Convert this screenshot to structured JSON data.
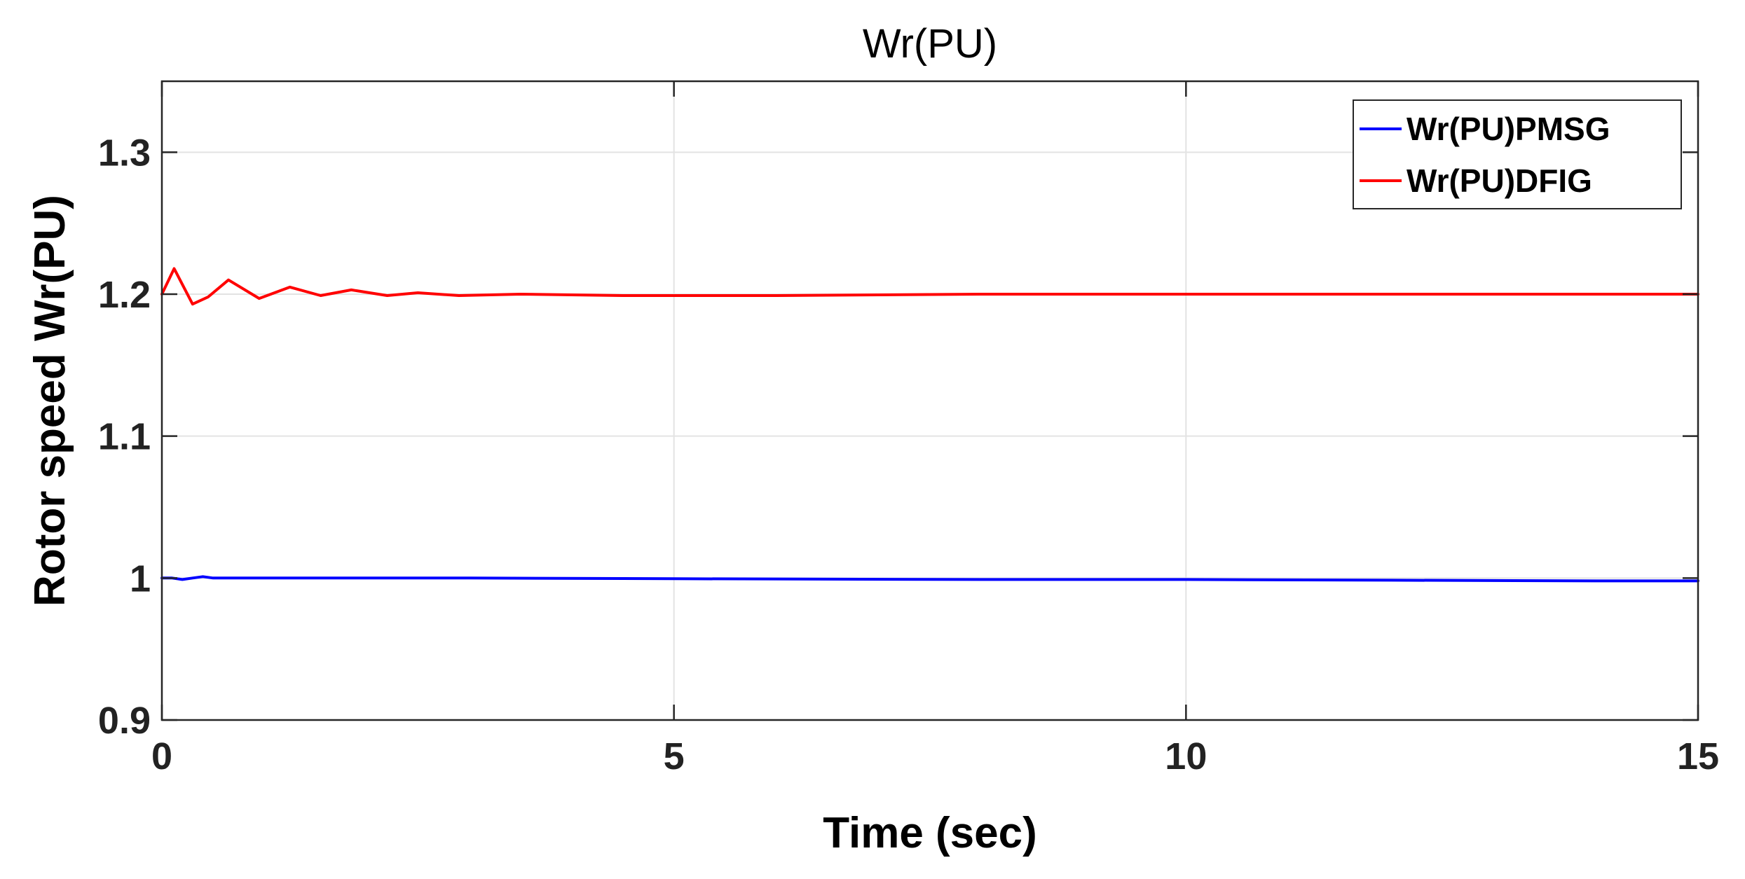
{
  "chart_data": {
    "type": "line",
    "title": "Wr(PU)",
    "xlabel": "Time (sec)",
    "ylabel": "Rotor speed Wr(PU)",
    "xlim": [
      0,
      15
    ],
    "ylim": [
      0.9,
      1.35
    ],
    "xticks": [
      "0",
      "5",
      "10",
      "15"
    ],
    "yticks": [
      "0.9",
      "1",
      "1.1",
      "1.2",
      "1.3"
    ],
    "grid": true,
    "legend_position": "top-right",
    "series": [
      {
        "name": "Wr(PU)PMSG",
        "color": "#0000ff",
        "x": [
          0,
          0.1,
          0.2,
          0.3,
          0.4,
          0.5,
          0.7,
          1.0,
          1.5,
          3,
          5,
          8,
          10,
          12,
          14,
          15
        ],
        "y": [
          1.0,
          1.0,
          0.999,
          1.0,
          1.001,
          1.0,
          1.0,
          1.0,
          1.0,
          1.0,
          0.9995,
          0.999,
          0.999,
          0.9985,
          0.998,
          0.998
        ]
      },
      {
        "name": "Wr(PU)DFIG",
        "color": "#ff0000",
        "x": [
          0,
          0.12,
          0.3,
          0.45,
          0.65,
          0.95,
          1.25,
          1.55,
          1.85,
          2.2,
          2.5,
          2.9,
          3.5,
          4.5,
          6,
          8,
          10,
          12,
          15
        ],
        "y": [
          1.2,
          1.218,
          1.193,
          1.198,
          1.21,
          1.197,
          1.205,
          1.199,
          1.203,
          1.199,
          1.201,
          1.199,
          1.2,
          1.199,
          1.199,
          1.2,
          1.2,
          1.2,
          1.2
        ]
      }
    ]
  }
}
